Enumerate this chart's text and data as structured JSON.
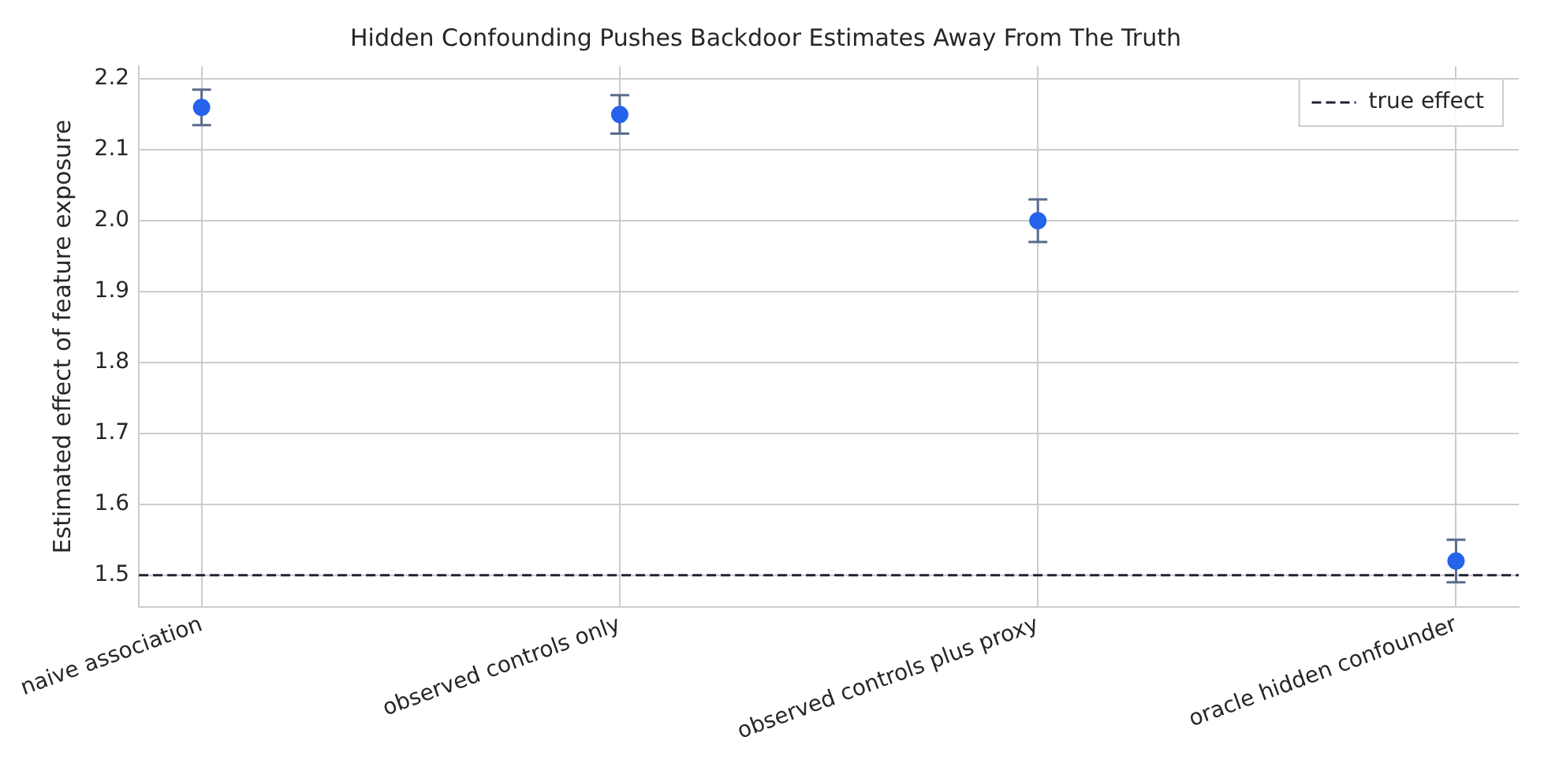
{
  "chart_data": {
    "type": "scatter",
    "title": "Hidden Confounding Pushes Backdoor Estimates Away From The Truth",
    "ylabel": "Estimated effect of feature exposure",
    "categories": [
      "naive association",
      "observed controls only",
      "observed controls plus proxy",
      "oracle hidden confounder"
    ],
    "series": [
      {
        "color": "#2563eb",
        "values": [
          2.16,
          2.15,
          2.0,
          1.52
        ],
        "errors": [
          0.025,
          0.027,
          0.03,
          0.03
        ]
      }
    ],
    "ylim": [
      1.455,
      2.218
    ],
    "yticks": [
      1.5,
      1.6,
      1.7,
      1.8,
      1.9,
      {
        "value": 2,
        "label": "2.0"
      },
      2.1,
      2.2
    ],
    "grid": true,
    "marker": "circle",
    "ref_lines": [
      {
        "axis": "y",
        "value": 1.5,
        "label": "true effect",
        "color": "#1f2433",
        "line_style": "dashed"
      }
    ],
    "legend": "top right"
  }
}
